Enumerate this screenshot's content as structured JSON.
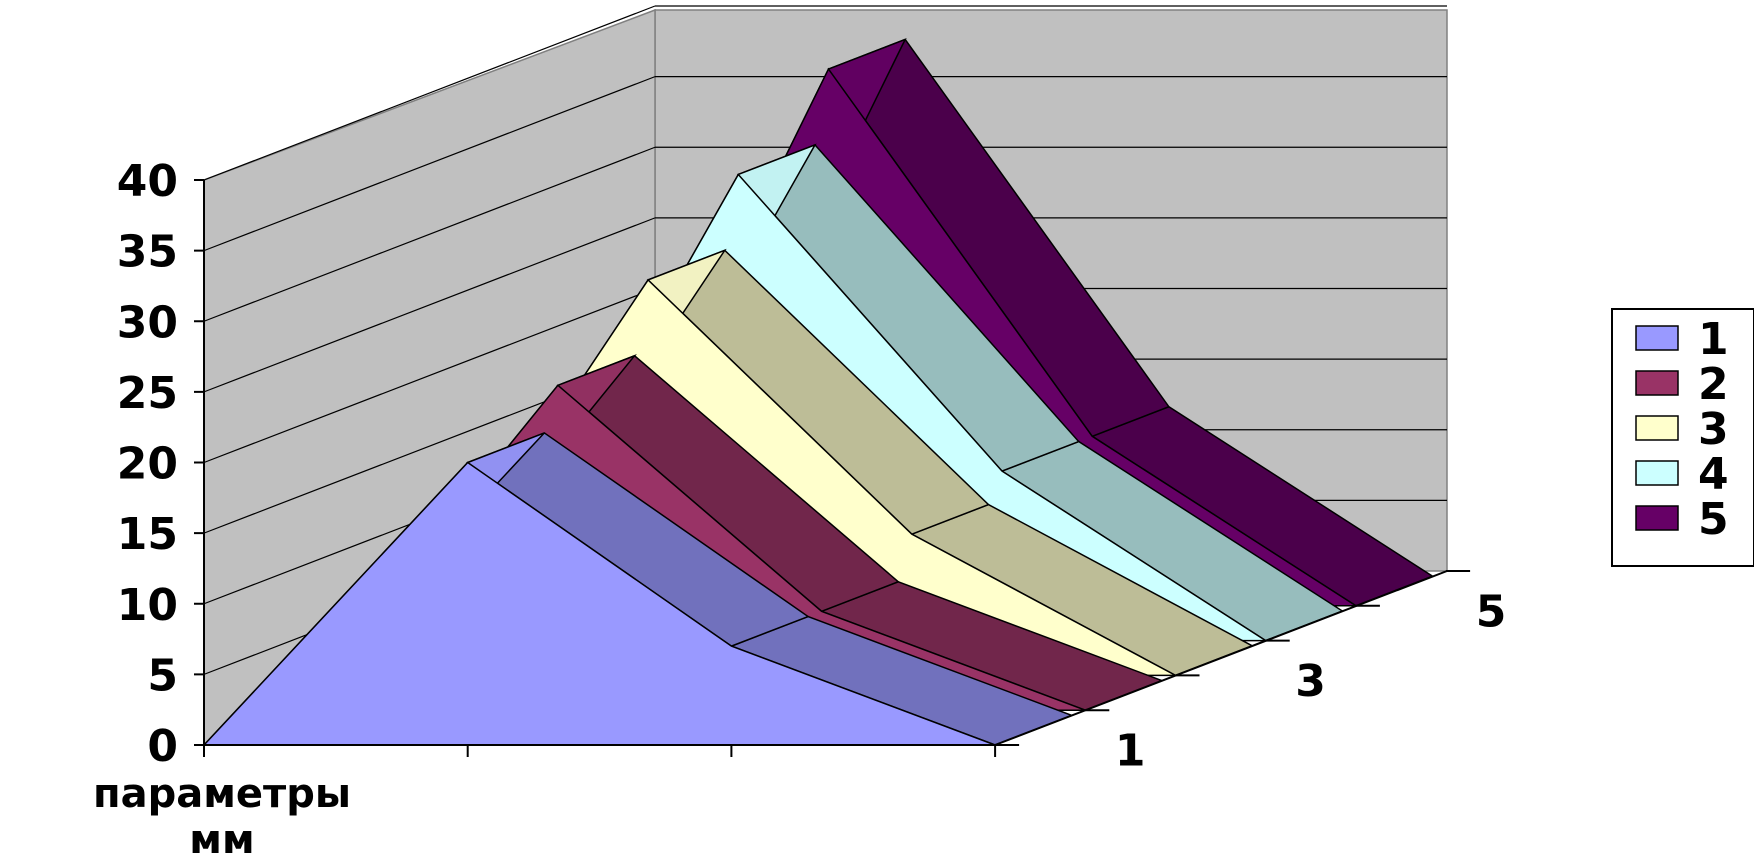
{
  "chart_data": {
    "type": "area",
    "variant": "3d-area",
    "title": "",
    "x_categories": [
      "параметры мм",
      "",
      "",
      ""
    ],
    "depth_labels": [
      "1",
      "3",
      "5"
    ],
    "ylim": [
      0,
      40
    ],
    "y_ticks": [
      "0",
      "5",
      "10",
      "15",
      "20",
      "25",
      "30",
      "35",
      "40"
    ],
    "grid": true,
    "legend_position": "right",
    "series": [
      {
        "name": "1",
        "color": "#9999ff",
        "values": [
          0,
          20,
          7,
          0
        ]
      },
      {
        "name": "2",
        "color": "#993366",
        "values": [
          0,
          23,
          7,
          0
        ]
      },
      {
        "name": "3",
        "color": "#ffffcc",
        "values": [
          0,
          28,
          10,
          0
        ]
      },
      {
        "name": "4",
        "color": "#ccffff",
        "values": [
          0,
          33,
          12,
          0
        ]
      },
      {
        "name": "5",
        "color": "#660066",
        "values": [
          0,
          38,
          12,
          0
        ]
      }
    ]
  }
}
